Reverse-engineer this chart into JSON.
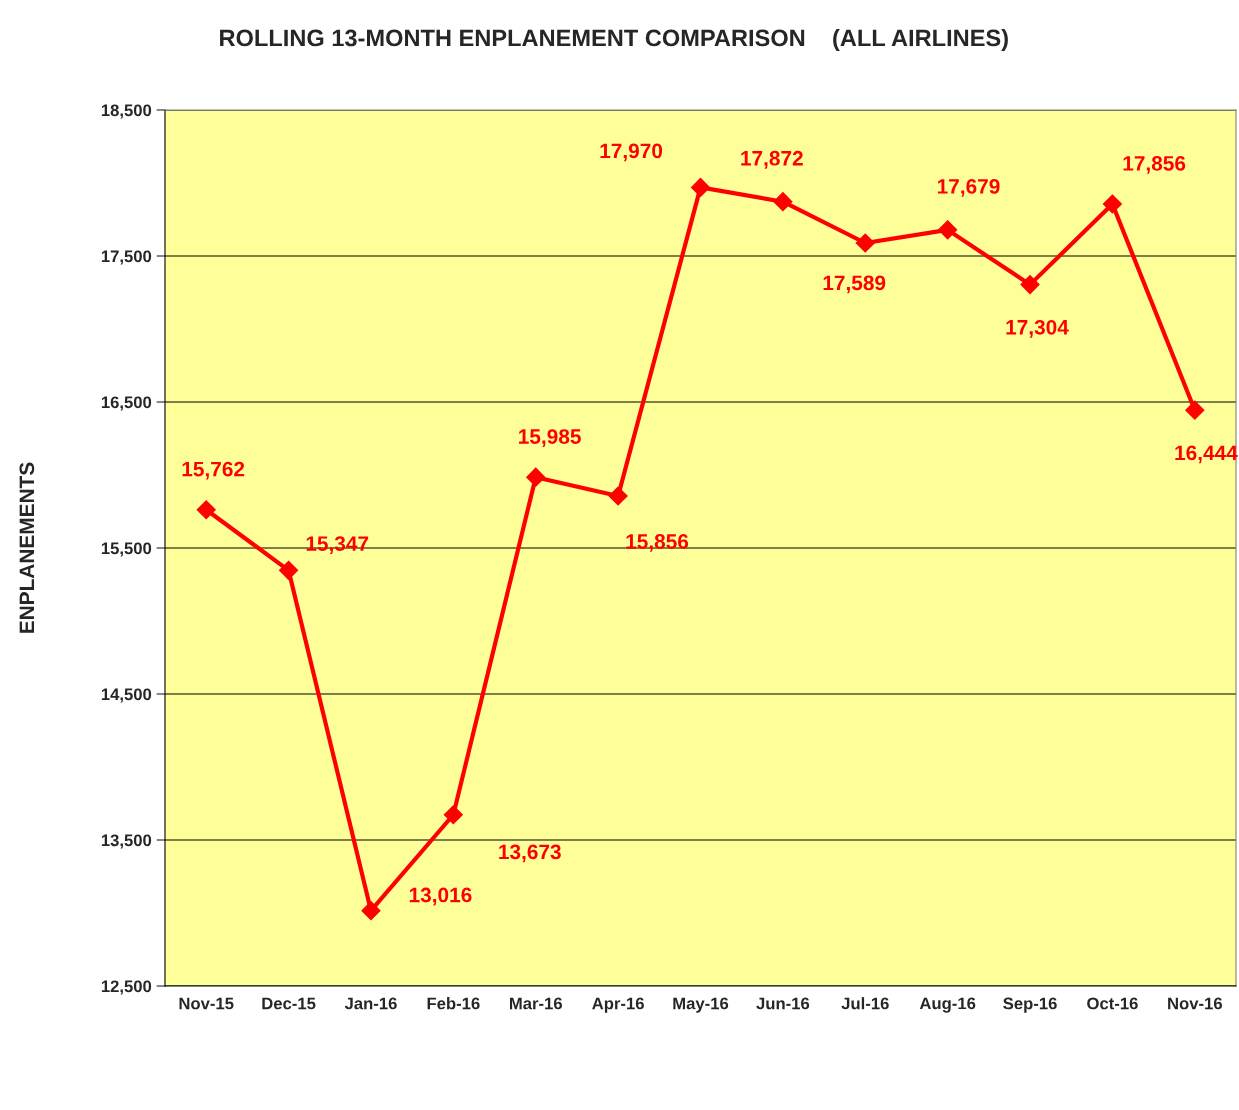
{
  "chart_data": {
    "type": "line",
    "title": "ROLLING 13-MONTH ENPLANEMENT COMPARISON    (ALL AIRLINES)",
    "ylabel": "ENPLANEMENTS",
    "categories": [
      "Nov-15",
      "Dec-15",
      "Jan-16",
      "Feb-16",
      "Mar-16",
      "Apr-16",
      "May-16",
      "Jun-16",
      "Jul-16",
      "Aug-16",
      "Sep-16",
      "Oct-16",
      "Nov-16"
    ],
    "series": [
      {
        "color": "#ff0000",
        "values": [
          15762,
          15347,
          13016,
          13673,
          15985,
          15856,
          17970,
          17872,
          17589,
          17679,
          17304,
          17856,
          16444
        ],
        "value_labels": [
          "15,762",
          "15,347",
          "13,016",
          "13,673",
          "15,985",
          "15,856",
          "17,970",
          "17,872",
          "17,589",
          "17,679",
          "17,304",
          "17,856",
          "16,444"
        ]
      }
    ],
    "ylim": [
      12500,
      18500
    ],
    "yticks": [
      {
        "value": 12500,
        "label": "12,500"
      },
      {
        "value": 13500,
        "label": "13,500"
      },
      {
        "value": 14500,
        "label": "14,500"
      },
      {
        "value": 15500,
        "label": "15,500"
      },
      {
        "value": 16500,
        "label": "16,500"
      },
      {
        "value": 17500,
        "label": "17,500"
      },
      {
        "value": 18500,
        "label": "18,500"
      }
    ],
    "grid": "y",
    "marker": "diamond",
    "line_style": "solid"
  }
}
